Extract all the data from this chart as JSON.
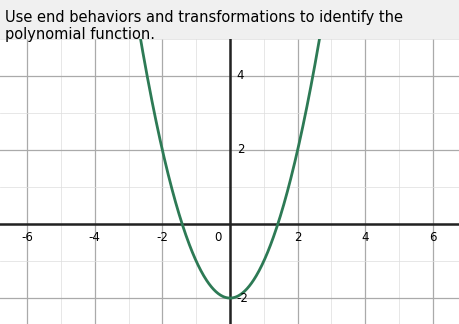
{
  "title": "Use end behaviors and transformations to identify the polynomial function.",
  "title_fontsize": 10.5,
  "curve_color": "#2d7a55",
  "curve_linewidth": 2.0,
  "fig_bg_color": "#f0f0f0",
  "plot_bg_color": "#ffffff",
  "xlim": [
    -6.8,
    6.8
  ],
  "ylim": [
    -2.7,
    5.0
  ],
  "xticks": [
    -6,
    -4,
    -2,
    0,
    2,
    4,
    6
  ],
  "yticks": [
    -2,
    2,
    4
  ],
  "xtick_labels": [
    "-6",
    "-4",
    "-2",
    "0",
    "2",
    "4",
    "6"
  ],
  "ytick_labels": [
    "-2",
    "2",
    "4"
  ],
  "major_grid_color": "#aaaaaa",
  "minor_grid_color": "#dddddd",
  "axis_color": "#222222",
  "polynomial_coeffs": [
    1,
    0,
    -2
  ],
  "x_range": [
    -6.8,
    6.8
  ]
}
